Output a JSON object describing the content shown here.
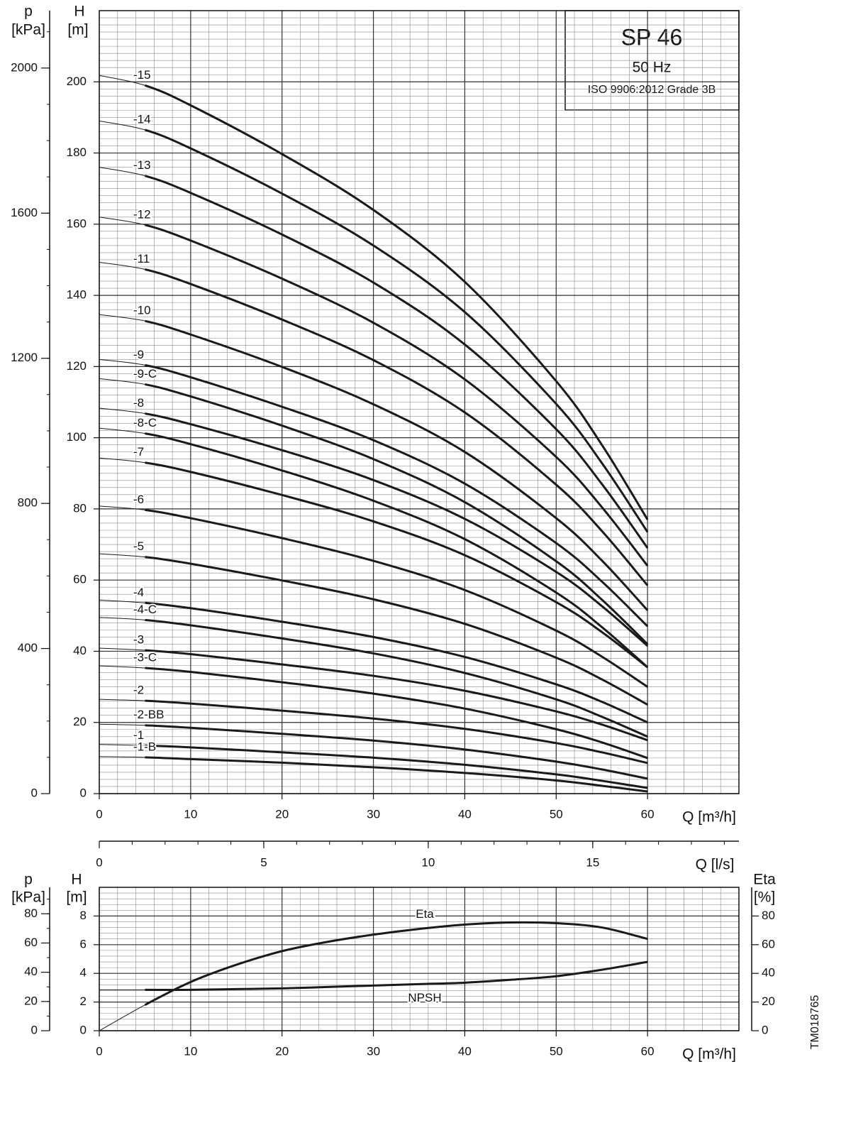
{
  "figure_id": "TM018765",
  "chart_data": [
    {
      "type": "line",
      "title": "SP 46",
      "subtitle": "50 Hz",
      "annotation": "ISO 9906:2012 Grade 3B",
      "xlabel": "Q [m³/h]",
      "ylabel": [
        "H",
        "[m]"
      ],
      "y2label": [
        "p",
        "[kPa]"
      ],
      "x2label": "Q [l/s]",
      "xlim": [
        0,
        70
      ],
      "xticks": [
        0,
        10,
        20,
        30,
        40,
        50,
        60
      ],
      "ylim": [
        0,
        220
      ],
      "yticks": [
        0,
        20,
        40,
        60,
        80,
        100,
        120,
        140,
        160,
        180,
        200
      ],
      "y2lim": [
        0,
        2158.2
      ],
      "y2ticks": [
        0,
        400,
        800,
        1200,
        1600,
        2000
      ],
      "y2minor": 100,
      "x2lim": [
        0,
        19.444
      ],
      "x2ticks": [
        0,
        5,
        10,
        15
      ],
      "x2minor": 1,
      "grid": true,
      "grid_minor": {
        "x": 2,
        "y": 2
      },
      "color": "#1a1a1a",
      "x": [
        0,
        5,
        10,
        20,
        30,
        40,
        50,
        55,
        60
      ],
      "series": [
        {
          "name": "-15",
          "values": [
            201.8,
            199,
            193.4,
            179.7,
            164,
            143.8,
            115.9,
            98,
            77
          ]
        },
        {
          "name": "-14",
          "values": [
            189,
            186.5,
            181.3,
            168.6,
            154,
            135.3,
            109.5,
            92.9,
            73.5
          ]
        },
        {
          "name": "-13",
          "values": [
            176,
            173.6,
            168.8,
            157.1,
            143.6,
            126.2,
            102.4,
            87,
            69
          ]
        },
        {
          "name": "-12",
          "values": [
            162,
            159.8,
            155.4,
            144.7,
            132.3,
            116.4,
            94.6,
            80.5,
            64
          ]
        },
        {
          "name": "-11",
          "values": [
            149.3,
            147.3,
            143.2,
            133.2,
            121.8,
            107.1,
            86.8,
            73.8,
            58.5
          ]
        },
        {
          "name": "-10",
          "values": [
            134.6,
            132.8,
            129,
            119.9,
            109.4,
            96,
            77.4,
            65.5,
            51.5
          ]
        },
        {
          "name": "-9",
          "values": [
            122,
            120.4,
            117,
            108.7,
            99.3,
            87.1,
            70.4,
            59.6,
            47
          ]
        },
        {
          "name": "-9-C",
          "values": [
            116.6,
            115,
            111.6,
            103.4,
            94,
            81.9,
            65.3,
            54.5,
            42
          ]
        },
        {
          "name": "-8",
          "values": [
            108.3,
            106.8,
            103.8,
            96.5,
            88.1,
            77.2,
            62.3,
            52.7,
            41.5
          ]
        },
        {
          "name": "-8-C",
          "values": [
            102.7,
            101.2,
            98.2,
            90.8,
            82.3,
            71.5,
            56.5,
            46.8,
            35.5
          ]
        },
        {
          "name": "-7",
          "values": [
            94.3,
            93,
            90.4,
            83.9,
            76.5,
            67,
            53.8,
            45.4,
            35.5
          ]
        },
        {
          "name": "-6",
          "values": [
            80.8,
            79.7,
            77.4,
            71.8,
            65.4,
            57.2,
            45.8,
            38.5,
            30
          ]
        },
        {
          "name": "-5",
          "values": [
            67.4,
            66.5,
            64.6,
            59.9,
            54.6,
            47.7,
            38.2,
            32.1,
            25
          ]
        },
        {
          "name": "-4",
          "values": [
            54.4,
            53.6,
            52.1,
            48.3,
            44,
            38.4,
            30.7,
            25.8,
            20
          ]
        },
        {
          "name": "-4-C",
          "values": [
            49.5,
            48.8,
            47.3,
            43.6,
            39.4,
            33.9,
            26.5,
            21.6,
            16
          ]
        },
        {
          "name": "-3",
          "values": [
            40.9,
            40.3,
            39.2,
            36.3,
            33.1,
            28.9,
            23.1,
            19.4,
            15
          ]
        },
        {
          "name": "-3-C",
          "values": [
            35.9,
            35.3,
            34.2,
            31.3,
            28.1,
            23.9,
            18.1,
            14.4,
            10
          ]
        },
        {
          "name": "-2",
          "values": [
            26.5,
            26.1,
            25.3,
            23.3,
            21.1,
            18.2,
            14.2,
            11.6,
            8.6
          ]
        },
        {
          "name": "-2-BB",
          "values": [
            19.5,
            19.2,
            18.5,
            16.8,
            14.9,
            12.4,
            9,
            6.8,
            4.2
          ]
        },
        {
          "name": "-1",
          "values": [
            13.8,
            13.5,
            13,
            11.6,
            10.1,
            8.1,
            5.4,
            3.6,
            1.6
          ]
        },
        {
          "name": "-1-B",
          "values": [
            10.4,
            10.2,
            9.7,
            8.7,
            7.4,
            5.8,
            3.7,
            2.2,
            0.6
          ]
        }
      ]
    },
    {
      "type": "line",
      "xlabel": "Q [m³/h]",
      "ylabel": [
        "H",
        "[m]"
      ],
      "y2label": [
        "Eta",
        "[%]"
      ],
      "y3label": [
        "p",
        "[kPa]"
      ],
      "xlim": [
        0,
        70
      ],
      "xticks": [
        0,
        10,
        20,
        30,
        40,
        50,
        60
      ],
      "ylim": [
        0,
        10
      ],
      "yticks": [
        0,
        2,
        4,
        6,
        8
      ],
      "y2lim": [
        0,
        100
      ],
      "y2ticks": [
        0,
        20,
        40,
        60,
        80
      ],
      "y3lim": [
        0,
        98.1
      ],
      "y3ticks": [
        0,
        20,
        40,
        60,
        80
      ],
      "y3minor": 10,
      "grid": true,
      "grid_minor": {
        "x": 2,
        "y": 0.4
      },
      "color": "#1a1a1a",
      "x": [
        0,
        5,
        10,
        15,
        20,
        25,
        30,
        35,
        40,
        45,
        50,
        55,
        60
      ],
      "series": [
        {
          "name": "Eta",
          "axis": "y2",
          "values": [
            0,
            18,
            34,
            46,
            55.5,
            62,
            67,
            71,
            74,
            75.5,
            75,
            72,
            64
          ]
        },
        {
          "name": "NPSH",
          "values": [
            2.85,
            2.85,
            2.85,
            2.9,
            2.95,
            3.05,
            3.15,
            3.25,
            3.35,
            3.55,
            3.8,
            4.25,
            4.8
          ]
        }
      ]
    }
  ]
}
